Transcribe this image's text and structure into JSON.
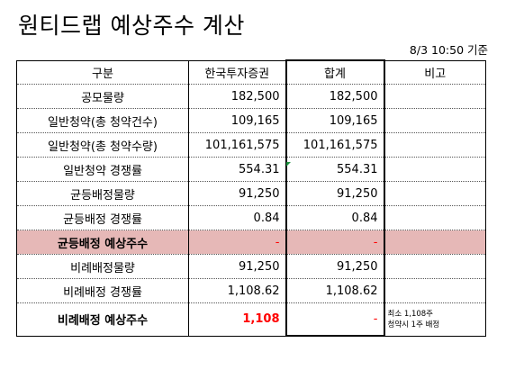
{
  "title": "원티드랩 예상주수 계산",
  "as_of": "8/3 10:50 기준",
  "columns": [
    "구분",
    "한국투자증권",
    "합계",
    "비고"
  ],
  "rows": [
    {
      "label": "공모물량",
      "kis": "182,500",
      "total": "182,500",
      "note": ""
    },
    {
      "label": "일반청약(총 청약건수)",
      "kis": "109,165",
      "total": "109,165",
      "note": ""
    },
    {
      "label": "일반청약(총 청약수량)",
      "kis": "101,161,575",
      "total": "101,161,575",
      "note": ""
    },
    {
      "label": "일반청약 경쟁률",
      "kis": "554.31",
      "total": "554.31",
      "note": ""
    },
    {
      "label": "균등배정물량",
      "kis": "91,250",
      "total": "91,250",
      "note": ""
    },
    {
      "label": "균등배정 경쟁률",
      "kis": "0.84",
      "total": "0.84",
      "note": ""
    },
    {
      "label": "균등배정 예상주수",
      "kis": "-",
      "total": "-",
      "note": ""
    },
    {
      "label": "비례배정물량",
      "kis": "91,250",
      "total": "91,250",
      "note": ""
    },
    {
      "label": "비례배정 경쟁률",
      "kis": "1,108.62",
      "total": "1,108.62",
      "note": ""
    },
    {
      "label": "비례배정 예상주수",
      "kis": "1,108",
      "total": "-",
      "note_line1": "최소 1,108주",
      "note_line2": "청약시 1주 배정"
    }
  ],
  "colors": {
    "highlight_row": "#e6b8b7",
    "red_text": "#ff0000",
    "cell_marker": "#1a8f3c"
  }
}
